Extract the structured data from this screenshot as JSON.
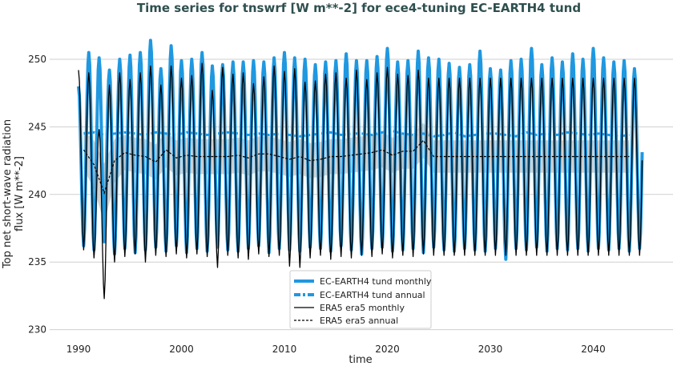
{
  "chart_data": {
    "type": "line",
    "title": "Time series for tnswrf [W m**-2] for ece4-tuning EC-EARTH4 tund",
    "xlabel": "time",
    "ylabel_lines": [
      "Top net short-wave radiation",
      "flux [W m**-2]"
    ],
    "xlim": [
      1987,
      2050
    ],
    "ylim": [
      229.5,
      252.5
    ],
    "xticks": [
      1990,
      2000,
      2010,
      2020,
      2030,
      2040
    ],
    "yticks": [
      230,
      235,
      240,
      245,
      250
    ],
    "grid": "horizontal",
    "legend_position": "bottom-center",
    "years": [
      1990,
      1991,
      1992,
      1993,
      1994,
      1995,
      1996,
      1997,
      1998,
      1999,
      2000,
      2001,
      2002,
      2003,
      2004,
      2005,
      2006,
      2007,
      2008,
      2009,
      2010,
      2011,
      2012,
      2013,
      2014,
      2015,
      2016,
      2017,
      2018,
      2019,
      2020,
      2021,
      2022,
      2023,
      2024,
      2025,
      2026,
      2027,
      2028,
      2029,
      2030,
      2031,
      2032,
      2033,
      2034,
      2035,
      2036,
      2037,
      2038,
      2039,
      2040,
      2041,
      2042,
      2043,
      2044
    ],
    "series": [
      {
        "name": "EC-EARTH4 tund monthly",
        "color": "#1f98e0",
        "style": "solid-thick",
        "annual_max": [
          248.0,
          250.5,
          250.1,
          249.2,
          250.0,
          250.3,
          250.5,
          251.4,
          249.3,
          251.0,
          249.9,
          250.0,
          250.5,
          249.5,
          249.6,
          249.8,
          249.8,
          249.9,
          249.8,
          250.1,
          250.5,
          250.1,
          250.0,
          249.6,
          249.8,
          249.9,
          250.4,
          249.9,
          249.9,
          250.2,
          250.8,
          249.8,
          249.9,
          250.6,
          250.1,
          250.0,
          249.7,
          249.4,
          249.6,
          250.6,
          249.3,
          249.2,
          249.9,
          250.0,
          250.8,
          249.6,
          250.1,
          249.8,
          250.4,
          250.0,
          250.8,
          250.1,
          249.8,
          249.9,
          249.3
        ],
        "annual_min": [
          236.2,
          235.9,
          236.5,
          235.6,
          236.0,
          235.7,
          235.9,
          236.1,
          235.8,
          236.2,
          235.7,
          236.0,
          235.8,
          236.1,
          235.9,
          235.8,
          236.0,
          236.2,
          235.7,
          236.0,
          235.9,
          235.8,
          236.1,
          236.0,
          235.8,
          236.2,
          235.9,
          235.6,
          236.0,
          236.1,
          235.8,
          235.9,
          236.0,
          235.7,
          236.1,
          235.9,
          235.8,
          236.0,
          235.9,
          235.8,
          236.0,
          235.2,
          236.0,
          235.9,
          236.1,
          235.8,
          236.0,
          235.9,
          236.0,
          235.8,
          236.0,
          235.9,
          236.0,
          235.8,
          236.0
        ]
      },
      {
        "name": "EC-EARTH4 tund annual",
        "color": "#1f98e0",
        "style": "dashed-thick",
        "values": [
          244.5,
          244.6,
          244.4,
          244.5,
          244.6,
          244.5,
          244.4,
          244.6,
          244.5,
          244.4,
          244.6,
          244.5,
          244.4,
          244.5,
          244.6,
          244.5,
          244.4,
          244.5,
          244.4,
          244.5,
          244.4,
          244.3,
          244.4,
          244.5,
          244.6,
          244.4,
          244.5,
          244.5,
          244.4,
          244.6,
          244.7,
          244.5,
          244.4,
          244.5,
          244.3,
          244.4,
          244.6,
          244.3,
          244.4,
          244.5,
          244.5,
          244.4,
          244.3,
          244.6,
          244.4,
          244.5,
          244.4,
          244.6,
          244.5,
          244.4,
          244.5,
          244.4,
          244.3,
          244.4
        ]
      },
      {
        "name": "ERA5 era5 monthly",
        "color": "#000000",
        "style": "solid-thin",
        "annual_max": [
          249.2,
          249.0,
          244.8,
          248.1,
          249.0,
          248.5,
          249.0,
          249.5,
          248.1,
          249.5,
          248.6,
          248.8,
          249.7,
          247.7,
          249.4,
          248.9,
          249.0,
          248.2,
          248.7,
          249.5,
          249.1,
          249.3,
          248.3,
          248.4,
          248.9,
          249.0,
          248.6,
          249.2,
          248.5,
          249.0,
          249.4,
          248.9,
          248.8,
          249.2,
          248.6,
          248.6,
          248.6,
          248.6,
          248.6,
          248.6,
          248.6,
          248.6,
          248.6,
          248.6,
          248.6,
          248.6,
          248.6,
          248.6,
          248.6,
          248.6,
          248.6,
          248.6,
          248.6,
          248.6,
          248.6
        ],
        "annual_min": [
          235.9,
          235.3,
          232.3,
          235.0,
          235.4,
          235.6,
          235.0,
          235.5,
          235.4,
          235.6,
          235.3,
          235.6,
          235.4,
          234.6,
          235.5,
          235.3,
          235.2,
          235.6,
          235.4,
          235.5,
          234.7,
          234.6,
          235.3,
          235.5,
          235.2,
          235.4,
          235.3,
          235.5,
          235.4,
          235.6,
          235.3,
          235.5,
          235.4,
          235.6,
          235.5,
          235.5,
          235.5,
          235.5,
          235.5,
          235.5,
          235.5,
          235.5,
          235.5,
          235.5,
          235.5,
          235.5,
          235.5,
          235.5,
          235.5,
          235.5,
          235.5,
          235.5,
          235.5,
          235.5,
          235.5
        ]
      },
      {
        "name": "ERA5 era5 annual",
        "color": "#000000",
        "style": "dashed-thin",
        "band_color": "#cccccc",
        "values": [
          243.3,
          242.2,
          240.1,
          242.5,
          243.1,
          242.9,
          242.8,
          242.4,
          243.3,
          242.7,
          242.9,
          242.8,
          242.8,
          242.8,
          242.8,
          242.9,
          242.7,
          243.0,
          243.0,
          242.8,
          242.6,
          242.8,
          242.5,
          242.6,
          242.8,
          242.8,
          242.9,
          243.0,
          243.1,
          243.3,
          242.9,
          243.2,
          243.2,
          244.0,
          242.8,
          242.8,
          242.8,
          242.8,
          242.8,
          242.8,
          242.8,
          242.8,
          242.8,
          242.8,
          242.8,
          242.8,
          242.8,
          242.8,
          242.8,
          242.8,
          242.8,
          242.8,
          242.8,
          242.8
        ],
        "band_halfwidth": [
          1.4,
          1.8,
          2.2,
          1.6,
          1.3,
          1.3,
          1.3,
          1.3,
          1.3,
          1.3,
          1.3,
          1.3,
          1.3,
          1.3,
          1.3,
          1.3,
          1.3,
          1.3,
          1.3,
          1.3,
          1.3,
          1.3,
          1.3,
          1.3,
          1.3,
          1.3,
          1.3,
          1.3,
          1.3,
          1.3,
          1.3,
          1.3,
          1.3,
          1.3,
          1.2,
          1.2,
          1.2,
          1.2,
          1.2,
          1.2,
          1.2,
          1.2,
          1.2,
          1.2,
          1.2,
          1.2,
          1.2,
          1.2,
          1.2,
          1.2,
          1.2,
          1.2,
          1.2,
          1.2
        ]
      }
    ]
  }
}
